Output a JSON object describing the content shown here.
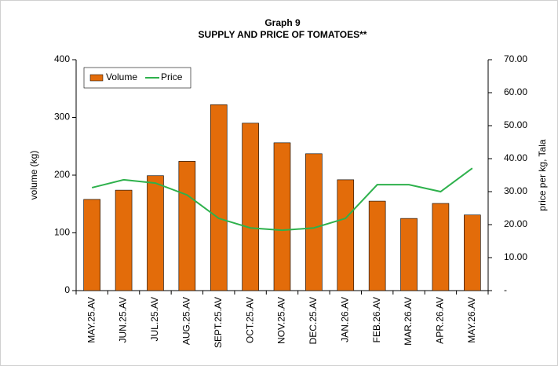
{
  "chart_data": {
    "type": "bar",
    "title": "Graph 9",
    "subtitle": "SUPPLY AND PRICE OF TOMATOES**",
    "y_label": "volume (kg)",
    "y2_label": "price per kg, Tala",
    "categories": [
      "MAY.25.AV",
      "JUN.25.AV",
      "JUL.25.AV",
      "AUG.25.AV",
      "SEPT.25.AV",
      "OCT.25.AV",
      "NOV.25.AV",
      "DEC.25.AV",
      "JAN.26.AV",
      "FEB.26.AV",
      "MAR.26.AV",
      "APR.26.AV",
      "MAY.26.AV"
    ],
    "series": [
      {
        "name": "Volume",
        "type": "bar",
        "color": "#e36c0a",
        "values": [
          158,
          174,
          199,
          224,
          322,
          290,
          256,
          237,
          192,
          155,
          125,
          151,
          131
        ]
      },
      {
        "name": "Price",
        "type": "line",
        "axis": "y2",
        "color": "#2eb14c",
        "values": [
          31.2,
          33.6,
          32.6,
          29,
          21.9,
          19,
          18.3,
          19,
          21.9,
          32.1,
          32.1,
          30,
          37.1
        ]
      }
    ],
    "ylim": [
      0,
      400
    ],
    "yticks": [
      0,
      100,
      200,
      300,
      400
    ],
    "y2lim": [
      0,
      70
    ],
    "y2ticks": [
      {
        "value": 0,
        "label": "-"
      },
      {
        "value": 10,
        "label": "10.00"
      },
      {
        "value": 20,
        "label": "20.00"
      },
      {
        "value": 30,
        "label": "30.00"
      },
      {
        "value": 40,
        "label": "40.00"
      },
      {
        "value": 50,
        "label": "50.00"
      },
      {
        "value": 60,
        "label": "60.00"
      },
      {
        "value": 70,
        "label": "70.00"
      }
    ],
    "grid": false,
    "legend": "top-left"
  }
}
